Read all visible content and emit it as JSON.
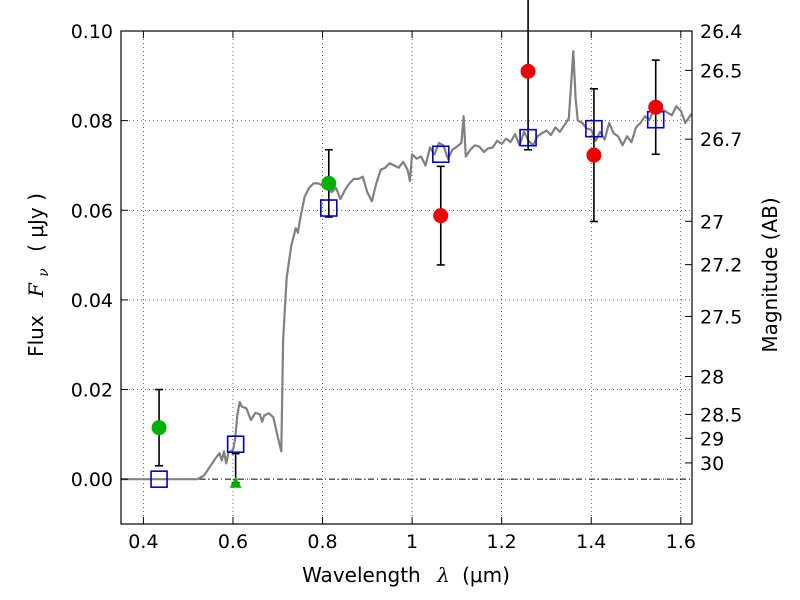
{
  "chart_data": {
    "type": "scatter",
    "xlabel_text": "Wavelength",
    "xlabel_symbol": "λ",
    "xlabel_unit": "(μm)",
    "ylabel_text": "Flux",
    "ylabel_symbol": "F",
    "ylabel_subscript": "ν",
    "ylabel_unit": "( μJy )",
    "y2label": "Magnitude (AB)",
    "xlim": [
      0.35,
      1.625
    ],
    "ylim": [
      -0.01,
      0.1
    ],
    "grid": true,
    "x_ticks": [
      {
        "value": 0.4,
        "label": "0.4"
      },
      {
        "value": 0.6,
        "label": "0.6"
      },
      {
        "value": 0.8,
        "label": "0.8"
      },
      {
        "value": 1.0,
        "label": "1"
      },
      {
        "value": 1.2,
        "label": "1.2"
      },
      {
        "value": 1.4,
        "label": "1.4"
      },
      {
        "value": 1.6,
        "label": "1.6"
      }
    ],
    "y_ticks": [
      {
        "value": 0.0,
        "label": "0.00"
      },
      {
        "value": 0.02,
        "label": "0.02"
      },
      {
        "value": 0.04,
        "label": "0.04"
      },
      {
        "value": 0.06,
        "label": "0.06"
      },
      {
        "value": 0.08,
        "label": "0.08"
      },
      {
        "value": 0.1,
        "label": "0.10"
      }
    ],
    "y2_ticks": [
      {
        "mag": 26.4,
        "label": "26.4"
      },
      {
        "mag": 26.5,
        "label": "26.5"
      },
      {
        "mag": 26.7,
        "label": "26.7"
      },
      {
        "mag": 27.0,
        "label": "27"
      },
      {
        "mag": 27.2,
        "label": "27.2"
      },
      {
        "mag": 27.5,
        "label": "27.5"
      },
      {
        "mag": 28.0,
        "label": "28"
      },
      {
        "mag": 28.5,
        "label": "28.5"
      },
      {
        "mag": 29.0,
        "label": "29"
      },
      {
        "mag": 30.0,
        "label": "30"
      }
    ],
    "model_spectrum": {
      "color": "#808080",
      "points": [
        [
          0.35,
          0.0
        ],
        [
          0.52,
          0.0
        ],
        [
          0.535,
          0.0008
        ],
        [
          0.55,
          0.003
        ],
        [
          0.56,
          0.0045
        ],
        [
          0.57,
          0.0058
        ],
        [
          0.575,
          0.0042
        ],
        [
          0.58,
          0.0062
        ],
        [
          0.585,
          0.0035
        ],
        [
          0.59,
          0.006
        ],
        [
          0.6,
          0.0065
        ],
        [
          0.605,
          0.009
        ],
        [
          0.61,
          0.0145
        ],
        [
          0.615,
          0.0172
        ],
        [
          0.62,
          0.0162
        ],
        [
          0.63,
          0.0158
        ],
        [
          0.64,
          0.0132
        ],
        [
          0.65,
          0.0148
        ],
        [
          0.66,
          0.0145
        ],
        [
          0.665,
          0.0128
        ],
        [
          0.67,
          0.0142
        ],
        [
          0.68,
          0.0147
        ],
        [
          0.69,
          0.0138
        ],
        [
          0.7,
          0.0095
        ],
        [
          0.708,
          0.0062
        ],
        [
          0.712,
          0.031
        ],
        [
          0.72,
          0.045
        ],
        [
          0.73,
          0.052
        ],
        [
          0.74,
          0.056
        ],
        [
          0.745,
          0.055
        ],
        [
          0.75,
          0.058
        ],
        [
          0.76,
          0.063
        ],
        [
          0.77,
          0.065
        ],
        [
          0.78,
          0.066
        ],
        [
          0.79,
          0.066
        ],
        [
          0.8,
          0.0655
        ],
        [
          0.81,
          0.066
        ],
        [
          0.82,
          0.064
        ],
        [
          0.83,
          0.065
        ],
        [
          0.84,
          0.0625
        ],
        [
          0.85,
          0.0645
        ],
        [
          0.86,
          0.066
        ],
        [
          0.87,
          0.067
        ],
        [
          0.88,
          0.067
        ],
        [
          0.89,
          0.0675
        ],
        [
          0.9,
          0.064
        ],
        [
          0.91,
          0.062
        ],
        [
          0.92,
          0.066
        ],
        [
          0.93,
          0.069
        ],
        [
          0.94,
          0.0695
        ],
        [
          0.95,
          0.0705
        ],
        [
          0.96,
          0.07
        ],
        [
          0.97,
          0.0695
        ],
        [
          0.98,
          0.0708
        ],
        [
          0.99,
          0.069
        ],
        [
          0.995,
          0.0665
        ],
        [
          1.0,
          0.0725
        ],
        [
          1.01,
          0.0715
        ],
        [
          1.02,
          0.072
        ],
        [
          1.03,
          0.07
        ],
        [
          1.04,
          0.074
        ],
        [
          1.05,
          0.0725
        ],
        [
          1.06,
          0.075
        ],
        [
          1.07,
          0.0745
        ],
        [
          1.08,
          0.0715
        ],
        [
          1.09,
          0.0735
        ],
        [
          1.1,
          0.0742
        ],
        [
          1.11,
          0.075
        ],
        [
          1.115,
          0.081
        ],
        [
          1.12,
          0.072
        ],
        [
          1.13,
          0.0735
        ],
        [
          1.14,
          0.0745
        ],
        [
          1.15,
          0.0742
        ],
        [
          1.16,
          0.073
        ],
        [
          1.17,
          0.0738
        ],
        [
          1.18,
          0.074
        ],
        [
          1.19,
          0.0755
        ],
        [
          1.2,
          0.0748
        ],
        [
          1.21,
          0.076
        ],
        [
          1.22,
          0.0752
        ],
        [
          1.23,
          0.077
        ],
        [
          1.24,
          0.0745
        ],
        [
          1.25,
          0.0775
        ],
        [
          1.26,
          0.0755
        ],
        [
          1.27,
          0.0745
        ],
        [
          1.28,
          0.0765
        ],
        [
          1.29,
          0.0772
        ],
        [
          1.3,
          0.0778
        ],
        [
          1.31,
          0.0768
        ],
        [
          1.32,
          0.0785
        ],
        [
          1.33,
          0.0775
        ],
        [
          1.34,
          0.079
        ],
        [
          1.35,
          0.0805
        ],
        [
          1.355,
          0.088
        ],
        [
          1.36,
          0.0955
        ],
        [
          1.365,
          0.085
        ],
        [
          1.37,
          0.08
        ],
        [
          1.38,
          0.0795
        ],
        [
          1.39,
          0.0782
        ],
        [
          1.4,
          0.078
        ],
        [
          1.41,
          0.0755
        ],
        [
          1.42,
          0.0775
        ],
        [
          1.43,
          0.0758
        ],
        [
          1.44,
          0.0795
        ],
        [
          1.45,
          0.0772
        ],
        [
          1.46,
          0.0765
        ],
        [
          1.47,
          0.0745
        ],
        [
          1.48,
          0.0765
        ],
        [
          1.49,
          0.0752
        ],
        [
          1.5,
          0.0785
        ],
        [
          1.51,
          0.0795
        ],
        [
          1.52,
          0.081
        ],
        [
          1.53,
          0.0802
        ],
        [
          1.54,
          0.0825
        ],
        [
          1.55,
          0.0832
        ],
        [
          1.56,
          0.0825
        ],
        [
          1.57,
          0.0818
        ],
        [
          1.58,
          0.0812
        ],
        [
          1.59,
          0.0832
        ],
        [
          1.6,
          0.0822
        ],
        [
          1.61,
          0.0795
        ],
        [
          1.62,
          0.081
        ],
        [
          1.625,
          0.0815
        ]
      ]
    },
    "model_photometry": {
      "marker": "square",
      "color": "#0000cc",
      "points": [
        [
          0.435,
          0.0
        ],
        [
          0.606,
          0.0078
        ],
        [
          0.814,
          0.0605
        ],
        [
          1.064,
          0.0725
        ],
        [
          1.259,
          0.0762
        ],
        [
          1.406,
          0.0782
        ],
        [
          1.544,
          0.0802
        ]
      ]
    },
    "detections": {
      "marker": "circle",
      "color": "#00b000",
      "points": [
        {
          "x": 0.435,
          "y": 0.0115,
          "err_low": 0.0085,
          "err_high": 0.0085
        },
        {
          "x": 0.814,
          "y": 0.066,
          "err_low": 0.0075,
          "err_high": 0.0075
        }
      ]
    },
    "upper_limits": {
      "marker": "triangle",
      "color": "#00b000",
      "points": [
        {
          "x": 0.606,
          "y": -0.0008,
          "err_low": 0.0,
          "err_high": 0.0065
        }
      ]
    },
    "observed_photometry": {
      "marker": "circle",
      "color": "#ee0000",
      "points": [
        {
          "x": 1.064,
          "y": 0.0588,
          "err_low": 0.011,
          "err_high": 0.011
        },
        {
          "x": 1.259,
          "y": 0.091,
          "err_low": 0.0175,
          "err_high": 0.0175
        },
        {
          "x": 1.406,
          "y": 0.0723,
          "err_low": 0.0148,
          "err_high": 0.0148
        },
        {
          "x": 1.544,
          "y": 0.083,
          "err_low": 0.0105,
          "err_high": 0.0105
        }
      ]
    }
  }
}
